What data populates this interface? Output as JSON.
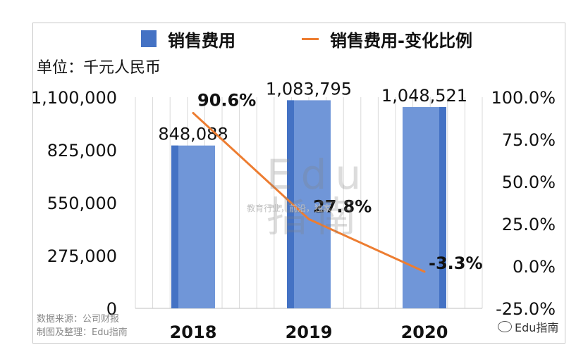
{
  "legend": {
    "bar_label": "销售费用",
    "line_label": "销售费用-变化比例"
  },
  "unit_label": "单位：千元人民币",
  "source": {
    "line1": "数据来源：公司财报",
    "line2": "制图及整理：Edu指南"
  },
  "watermark": {
    "text": "教育行业，前沿，独家",
    "logo_line1": "Edu",
    "logo_line2": "指南"
  },
  "wechat_label": "Edu指南",
  "colors": {
    "bar": "#4472C4",
    "line": "#ED7D31"
  },
  "chart_data": {
    "type": "bar",
    "categories": [
      "2018",
      "2019",
      "2020"
    ],
    "series": [
      {
        "name": "销售费用",
        "type": "bar",
        "axis": "left",
        "values": [
          848088,
          1083795,
          1048521
        ],
        "labels": [
          "848,088",
          "1,083,795",
          "1,048,521"
        ]
      },
      {
        "name": "销售费用-变化比例",
        "type": "line",
        "axis": "right",
        "values": [
          90.6,
          27.8,
          -3.3
        ],
        "labels": [
          "90.6%",
          "27.8%",
          "-3.3%"
        ]
      }
    ],
    "y_left": {
      "min": 0,
      "max": 1100000,
      "ticks": [
        0,
        275000,
        550000,
        825000,
        1100000
      ],
      "tick_labels": [
        "0",
        "275,000",
        "550,000",
        "825,000",
        "1,100,000"
      ]
    },
    "y_right": {
      "min": -25,
      "max": 100,
      "ticks": [
        -25,
        0,
        25,
        50,
        75,
        100
      ],
      "tick_labels": [
        "-25.0%",
        "0.0%",
        "25.0%",
        "50.0%",
        "75.0%",
        "100.0%"
      ]
    },
    "grid": "vertical",
    "legend_position": "top"
  }
}
